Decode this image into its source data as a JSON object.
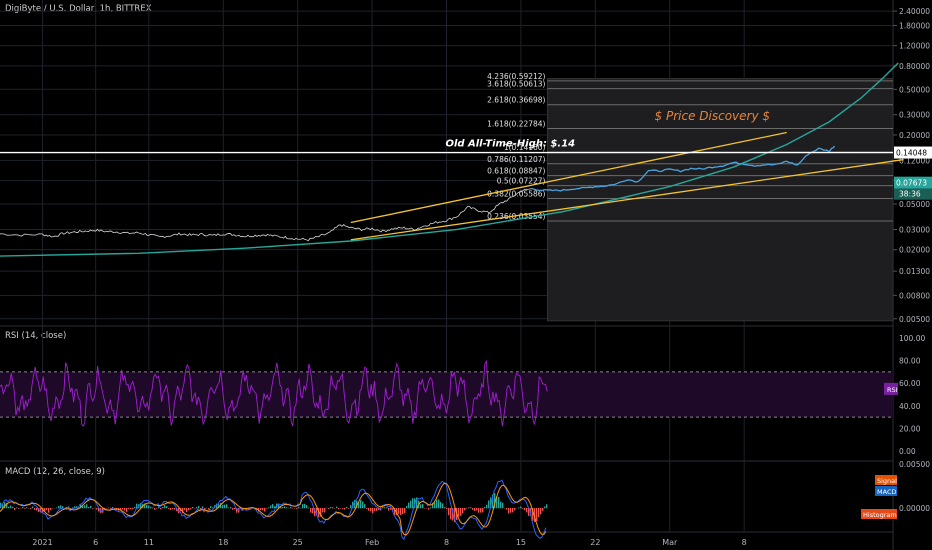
{
  "header": {
    "symbol": "DigiByte / U.S. Dollar, 1h, BITTREX",
    "rsi_label": "RSI (14, close)",
    "macd_label": "MACD (12, 26, close, 9)"
  },
  "colors": {
    "background": "#000000",
    "grid": "#1e222d",
    "price": "#d6d6d6",
    "breakout": "#4aa3df",
    "channel": "#f4c430",
    "curve": "#26a69a",
    "fib_box": "#1e1e20",
    "fib_line": "#6b6b6b",
    "discovery_text": "#e8843a",
    "ath_line": "#ffffff",
    "rsi_line": "#a020d0",
    "rsi_band": "#1e0a28",
    "macd_line": "#2962ff",
    "signal_line": "#ff9800",
    "hist_pos": "#26a69a",
    "hist_neg": "#ef5350"
  },
  "chart_data": [
    {
      "type": "line",
      "name": "price_panel",
      "series_label": "DigiByte / U.S. Dollar, 1h",
      "y_scale": "log",
      "y_ticks": [
        "2.40000",
        "1.80000",
        "1.20000",
        "0.80000",
        "0.50000",
        "0.30000",
        "0.20000",
        "0.12000",
        "0.08000",
        "0.05000",
        "0.03000",
        "0.02000",
        "0.01300",
        "0.00800",
        "0.00500"
      ],
      "y_tick_values": [
        2.4,
        1.8,
        1.2,
        0.8,
        0.5,
        0.3,
        0.2,
        0.12,
        0.08,
        0.05,
        0.03,
        0.02,
        0.013,
        0.008,
        0.005
      ],
      "x_ticks": [
        "2021",
        "6",
        "11",
        "18",
        "25",
        "Feb",
        "8",
        "15",
        "22",
        "Mar",
        "8"
      ],
      "x_tick_days": [
        1,
        6,
        11,
        18,
        25,
        32,
        39,
        46,
        53,
        60,
        67
      ],
      "x_range_days": [
        -3,
        81
      ],
      "y_range": [
        0.0045,
        3.0
      ],
      "price_series": [
        [
          -3,
          0.0275
        ],
        [
          -1,
          0.0268
        ],
        [
          1,
          0.0272
        ],
        [
          2,
          0.026
        ],
        [
          3,
          0.0278
        ],
        [
          4,
          0.0285
        ],
        [
          5,
          0.029
        ],
        [
          6,
          0.0296
        ],
        [
          7,
          0.0288
        ],
        [
          8,
          0.0286
        ],
        [
          9,
          0.0278
        ],
        [
          10,
          0.0281
        ],
        [
          11,
          0.027
        ],
        [
          12,
          0.0258
        ],
        [
          13,
          0.0265
        ],
        [
          14,
          0.0275
        ],
        [
          15,
          0.0268
        ],
        [
          16,
          0.0272
        ],
        [
          17,
          0.0266
        ],
        [
          18,
          0.0275
        ],
        [
          19,
          0.027
        ],
        [
          20,
          0.0262
        ],
        [
          21,
          0.0266
        ],
        [
          22,
          0.027
        ],
        [
          23,
          0.0262
        ],
        [
          24,
          0.0255
        ],
        [
          25,
          0.0248
        ],
        [
          26,
          0.0244
        ],
        [
          27,
          0.026
        ],
        [
          28,
          0.028
        ],
        [
          29,
          0.033
        ],
        [
          30,
          0.031
        ],
        [
          31,
          0.03
        ],
        [
          32,
          0.0305
        ],
        [
          33,
          0.029
        ],
        [
          34,
          0.0305
        ],
        [
          35,
          0.031
        ],
        [
          36,
          0.03
        ],
        [
          37,
          0.0325
        ],
        [
          38,
          0.0345
        ],
        [
          39,
          0.036
        ],
        [
          40,
          0.039
        ],
        [
          41,
          0.047
        ],
        [
          42,
          0.044
        ],
        [
          43,
          0.042
        ],
        [
          44,
          0.05
        ],
        [
          45,
          0.056
        ],
        [
          46,
          0.065
        ],
        [
          47,
          0.068
        ]
      ],
      "breakout_series": [
        [
          47,
          0.068
        ],
        [
          48,
          0.066
        ],
        [
          49,
          0.0655
        ],
        [
          50,
          0.066
        ],
        [
          51,
          0.068
        ],
        [
          52,
          0.069
        ],
        [
          53,
          0.071
        ],
        [
          54,
          0.072
        ],
        [
          55,
          0.075
        ],
        [
          56,
          0.082
        ],
        [
          57,
          0.078
        ],
        [
          58,
          0.098
        ],
        [
          59,
          0.097
        ],
        [
          60,
          0.1
        ],
        [
          61,
          0.097
        ],
        [
          62,
          0.102
        ],
        [
          63,
          0.101
        ],
        [
          64,
          0.105
        ],
        [
          65,
          0.108
        ],
        [
          66,
          0.115
        ],
        [
          67,
          0.112
        ],
        [
          68,
          0.108
        ],
        [
          69,
          0.11
        ],
        [
          70,
          0.11
        ],
        [
          71,
          0.118
        ],
        [
          72,
          0.109
        ],
        [
          73,
          0.136
        ],
        [
          74,
          0.152
        ],
        [
          75,
          0.145
        ],
        [
          75.5,
          0.16
        ]
      ],
      "last_price": "0.07673",
      "countdown": "38:36",
      "ath_price": "0.14048",
      "ath_value": 0.14048,
      "ath_label": "Old All-Time-High: $.14",
      "discovery_label": "$ Price Discovery $",
      "fib_box": {
        "x0": 48.5,
        "x1": 81,
        "y0": 0.0048,
        "y1": 0.62
      },
      "fib_levels": [
        {
          "label": "4.236(0.59212)",
          "value": 0.59212
        },
        {
          "label": "3.618(0.50613)",
          "value": 0.50613
        },
        {
          "label": "2.618(0.36698)",
          "value": 0.36698
        },
        {
          "label": "1.618(0.22784)",
          "value": 0.22784
        },
        {
          "label": "1(0.14160)",
          "value": 0.1416
        },
        {
          "label": "0.786(0.11207)",
          "value": 0.11207
        },
        {
          "label": "0.618(0.08847)",
          "value": 0.08847
        },
        {
          "label": "0.5(0.07227)",
          "value": 0.07227
        },
        {
          "label": "0.382(0.05586)",
          "value": 0.05586
        },
        {
          "label": "0.236(0.03554)",
          "value": 0.03554
        }
      ],
      "channel_upper": [
        [
          30,
          0.0345
        ],
        [
          71,
          0.21
        ]
      ],
      "channel_lower": [
        [
          30,
          0.0244
        ],
        [
          82,
          0.122
        ]
      ],
      "curve_points": [
        [
          -3,
          0.0176
        ],
        [
          10,
          0.0186
        ],
        [
          20,
          0.0206
        ],
        [
          30,
          0.0238
        ],
        [
          40,
          0.03
        ],
        [
          50,
          0.043
        ],
        [
          60,
          0.071
        ],
        [
          66,
          0.105
        ],
        [
          71,
          0.165
        ],
        [
          75,
          0.26
        ],
        [
          78,
          0.42
        ],
        [
          80,
          0.62
        ],
        [
          81.5,
          0.85
        ]
      ]
    },
    {
      "type": "line",
      "name": "rsi_panel",
      "series_label": "RSI (14, close)",
      "y_ticks": [
        "100.00",
        "80.00",
        "60.00",
        "40.00",
        "20.00",
        "0.00"
      ],
      "y_tick_values": [
        100,
        80,
        60,
        40,
        20,
        0
      ],
      "band": [
        30,
        70
      ],
      "legend": "RSI",
      "end_value": 55
    },
    {
      "type": "line",
      "name": "macd_panel",
      "series_label": "MACD (12, 26, close, 9)",
      "y_ticks": [
        "0.00500",
        "0.00000"
      ],
      "y_tick_values": [
        0.005,
        0.0
      ],
      "legend_signal": "Signal",
      "legend_macd": "MACD",
      "legend_histogram": "Histogram"
    }
  ]
}
